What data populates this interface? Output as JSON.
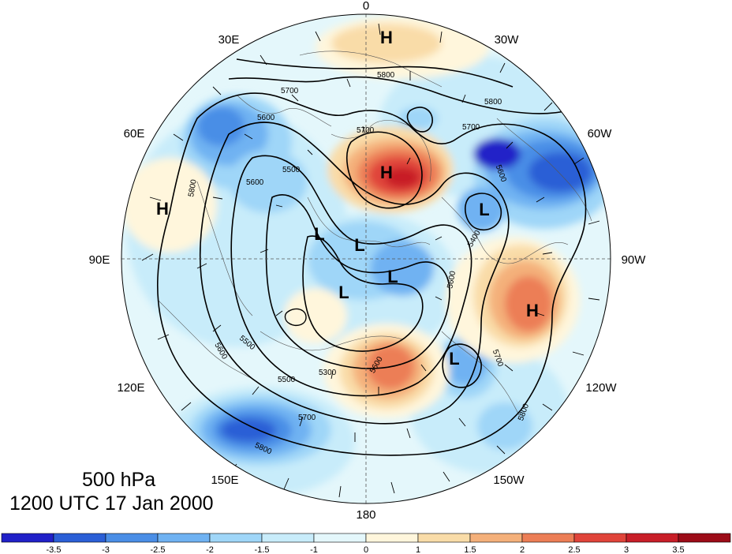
{
  "title": {
    "level": "500 hPa",
    "time": "1200 UTC 17 Jan 2000"
  },
  "longitude_labels": [
    {
      "id": "0",
      "text": "0"
    },
    {
      "id": "30w",
      "text": "30W"
    },
    {
      "id": "60w",
      "text": "60W"
    },
    {
      "id": "90w",
      "text": "90W"
    },
    {
      "id": "120w",
      "text": "120W"
    },
    {
      "id": "150w",
      "text": "150W"
    },
    {
      "id": "180",
      "text": "180"
    },
    {
      "id": "150e",
      "text": "150E"
    },
    {
      "id": "120e",
      "text": "120E"
    },
    {
      "id": "90e",
      "text": "90E"
    },
    {
      "id": "60e",
      "text": "60E"
    },
    {
      "id": "30e",
      "text": "30E"
    }
  ],
  "pressure_centers": [
    {
      "id": "h-north",
      "text": "H"
    },
    {
      "id": "h-greenland",
      "text": "H"
    },
    {
      "id": "h-west",
      "text": "H"
    },
    {
      "id": "h-east",
      "text": "H"
    },
    {
      "id": "l-east",
      "text": "L"
    },
    {
      "id": "l-1",
      "text": "L"
    },
    {
      "id": "l-2",
      "text": "L"
    },
    {
      "id": "l-3",
      "text": "L"
    },
    {
      "id": "l-4",
      "text": "L"
    },
    {
      "id": "l-southeast",
      "text": "L"
    }
  ],
  "contour_labels": [
    {
      "id": "c1",
      "text": "5800"
    },
    {
      "id": "c2",
      "text": "5700"
    },
    {
      "id": "c3",
      "text": "5800"
    },
    {
      "id": "c4",
      "text": "5700"
    },
    {
      "id": "c5",
      "text": "5600"
    },
    {
      "id": "c6",
      "text": "5700"
    },
    {
      "id": "c7",
      "text": "5600"
    },
    {
      "id": "c8",
      "text": "5800"
    },
    {
      "id": "c9",
      "text": "5500"
    },
    {
      "id": "c10",
      "text": "5600"
    },
    {
      "id": "c11",
      "text": "5300"
    },
    {
      "id": "c12",
      "text": "5500"
    },
    {
      "id": "c13",
      "text": "5600"
    },
    {
      "id": "c14",
      "text": "5700"
    },
    {
      "id": "c15",
      "text": "5800"
    },
    {
      "id": "c16",
      "text": "5600"
    },
    {
      "id": "c17",
      "text": "5700"
    },
    {
      "id": "c18",
      "text": "5800"
    },
    {
      "id": "c19",
      "text": "5400"
    },
    {
      "id": "c20",
      "text": "5600"
    },
    {
      "id": "c21",
      "text": "5500"
    }
  ],
  "colorbar": {
    "ticks": [
      "-3.5",
      "-3",
      "-2.5",
      "-2",
      "-1.5",
      "-1",
      "0",
      "1",
      "1.5",
      "2",
      "2.5",
      "3",
      "3.5"
    ],
    "colors": [
      "#2020c8",
      "#2b5fd6",
      "#4a8ee6",
      "#6fb2f2",
      "#9fd6f8",
      "#c8ecfa",
      "#e4f7fb",
      "#fff6dc",
      "#f9dca8",
      "#f4b07a",
      "#ec7e56",
      "#e0443a",
      "#c81e28",
      "#9c0c18"
    ]
  },
  "anomaly_colors": {
    "strong_neg": "#2020c8",
    "neg3": "#2b5fd6",
    "neg2": "#4a8ee6",
    "neg15": "#6fb2f2",
    "neg1": "#9fd6f8",
    "weak_neg": "#c8ecfa",
    "near_zero": "#e4f7fb",
    "weak_pos": "#fff6dc",
    "pos15": "#f9dca8",
    "pos2": "#f4b07a",
    "pos25": "#ec7e56",
    "pos3": "#e0443a",
    "strong_pos": "#c81e28"
  }
}
